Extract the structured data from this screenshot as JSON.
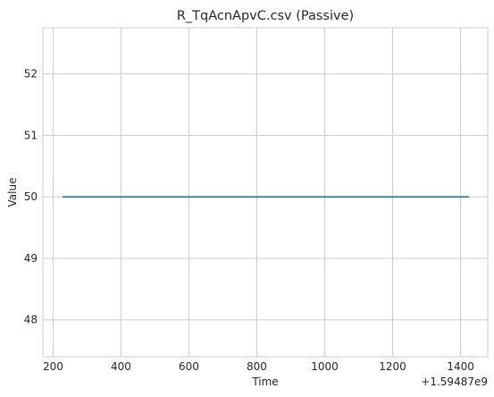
{
  "chart_data": {
    "type": "line",
    "title": "R_TqAcnApvC.csv (Passive)",
    "xlabel": "Time",
    "ylabel": "Value",
    "x_offset_label": "+1.59487e9",
    "xlim": [
      170,
      1480
    ],
    "ylim": [
      47.4,
      52.75
    ],
    "xticks": [
      200,
      400,
      600,
      800,
      1000,
      1200,
      1400
    ],
    "yticks": [
      48,
      49,
      50,
      51,
      52
    ],
    "grid": true,
    "series": [
      {
        "x": [
          228,
          1425
        ],
        "y": [
          50,
          50
        ],
        "color": "#1f77b4"
      }
    ]
  }
}
